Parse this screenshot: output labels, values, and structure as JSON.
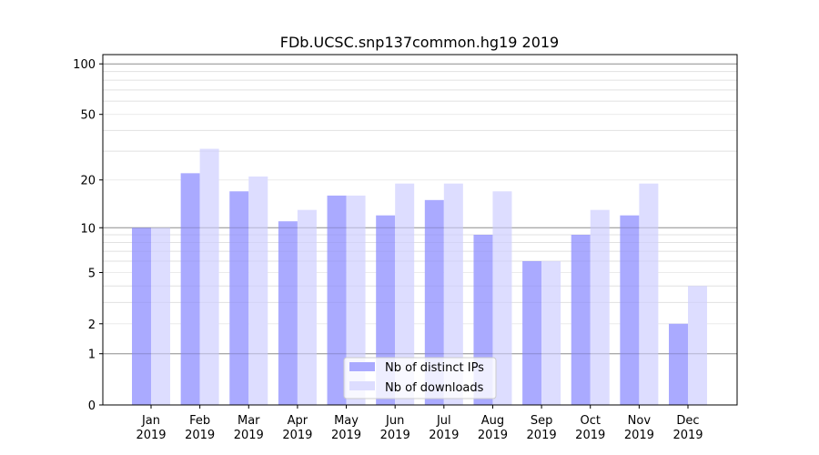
{
  "chart_data": {
    "type": "bar",
    "title": "FDb.UCSC.snp137common.hg19 2019",
    "xlabel": "",
    "ylabel": "",
    "yscale": "log10(y+1)",
    "ylim": [
      0,
      110
    ],
    "yticks": [
      0,
      1,
      2,
      5,
      10,
      20,
      50,
      100
    ],
    "ytick_labels": [
      "0",
      "1",
      "2",
      "5",
      "10",
      "20",
      "50",
      "100"
    ],
    "minor_gridlines": [
      3,
      4,
      6,
      7,
      8,
      9,
      30,
      40,
      60,
      70,
      80,
      90
    ],
    "major_gridlines": [
      1,
      10,
      100
    ],
    "grid": true,
    "categories": [
      {
        "month": "Jan",
        "year": "2019"
      },
      {
        "month": "Feb",
        "year": "2019"
      },
      {
        "month": "Mar",
        "year": "2019"
      },
      {
        "month": "Apr",
        "year": "2019"
      },
      {
        "month": "May",
        "year": "2019"
      },
      {
        "month": "Jun",
        "year": "2019"
      },
      {
        "month": "Jul",
        "year": "2019"
      },
      {
        "month": "Aug",
        "year": "2019"
      },
      {
        "month": "Sep",
        "year": "2019"
      },
      {
        "month": "Oct",
        "year": "2019"
      },
      {
        "month": "Nov",
        "year": "2019"
      },
      {
        "month": "Dec",
        "year": "2019"
      }
    ],
    "series": [
      {
        "name": "Nb of distinct IPs",
        "color": "#aaaaff",
        "values": [
          10,
          22,
          17,
          11,
          16,
          12,
          15,
          9,
          6,
          9,
          12,
          2
        ]
      },
      {
        "name": "Nb of downloads",
        "color": "#ddddff",
        "values": [
          10,
          31,
          21,
          13,
          16,
          19,
          19,
          17,
          6,
          13,
          19,
          4
        ]
      }
    ],
    "legend_position": "lower-center"
  }
}
